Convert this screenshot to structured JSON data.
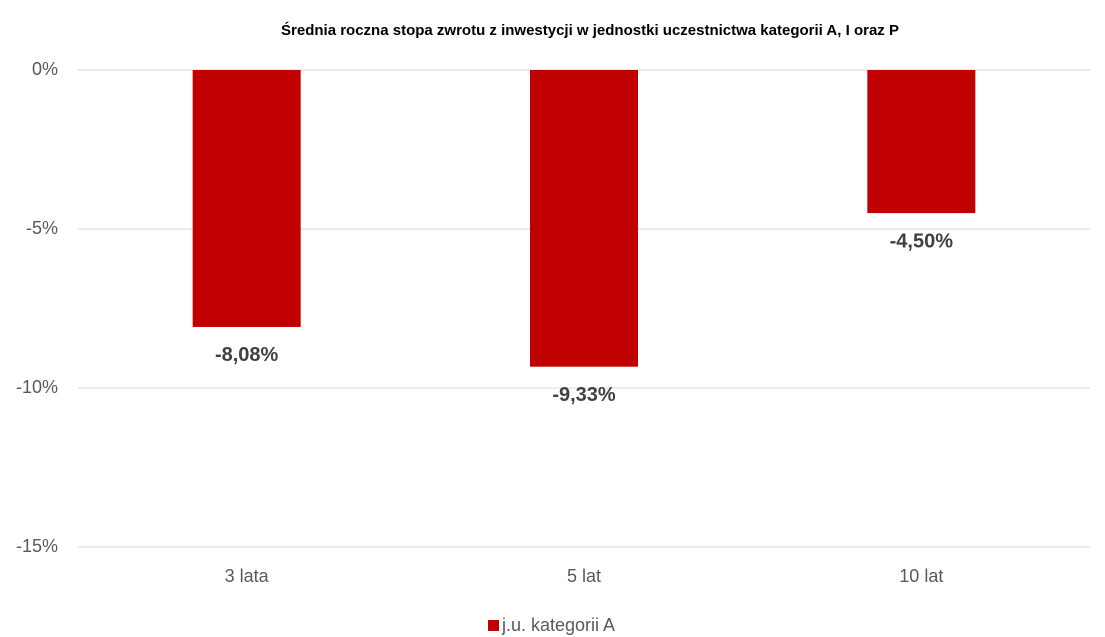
{
  "chart_data": {
    "type": "bar",
    "title": "Średnia roczna stopa zwrotu z inwestycji w jednostki uczestnictwa kategorii A, I oraz P",
    "categories": [
      "3 lata",
      "5 lat",
      "10 lat"
    ],
    "series": [
      {
        "name": "j.u. kategorii A",
        "color": "#c00000",
        "values": [
          -8.08,
          -9.33,
          -4.5
        ],
        "value_labels": [
          "-8,08%",
          "-9,33%",
          "-4,50%"
        ]
      }
    ],
    "ylim": [
      -15,
      0
    ],
    "yticks": [
      {
        "value": 0,
        "label": "0%"
      },
      {
        "value": -5,
        "label": "-5%"
      },
      {
        "value": -10,
        "label": "-10%"
      },
      {
        "value": -15,
        "label": "-15%"
      }
    ],
    "grid": true,
    "legend": "bottom"
  }
}
